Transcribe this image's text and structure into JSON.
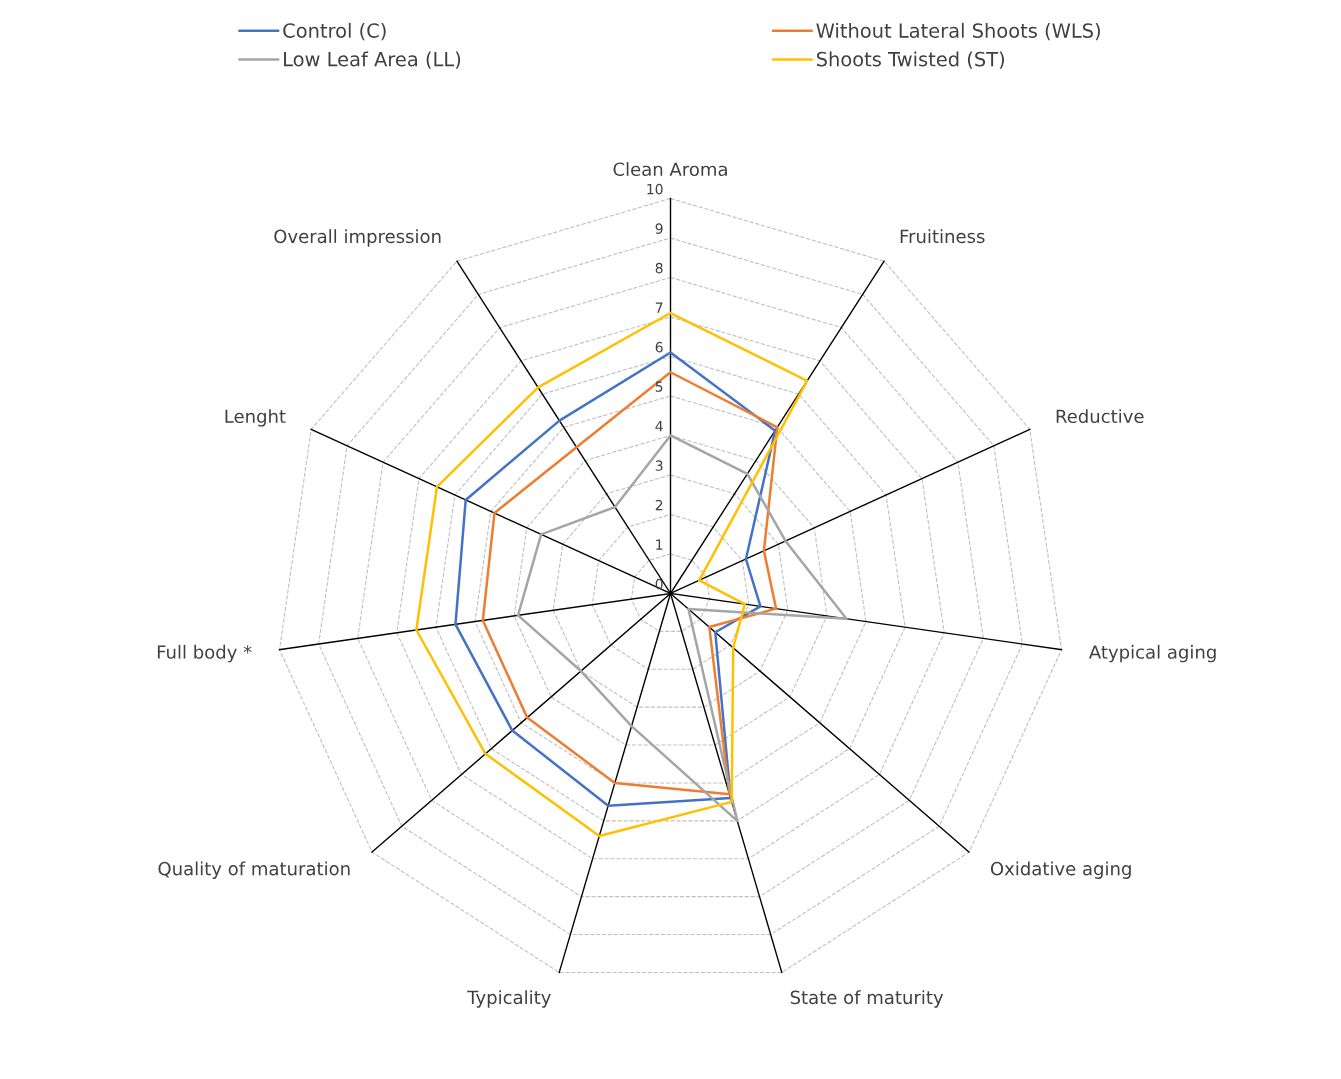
{
  "chart_data": {
    "type": "radar",
    "categories": [
      "Clean Aroma",
      "Fruitiness",
      "Reductive",
      "Atypical aging",
      "Oxidative aging",
      "State of maturity",
      "Typicality",
      "Quality of maturation",
      "Full body *",
      "Lenght",
      "Overall impression"
    ],
    "series": [
      {
        "name": "Control (C)",
        "color": "#4472c4",
        "values": [
          6.1,
          4.9,
          2.1,
          2.3,
          1.5,
          5.4,
          5.6,
          5.3,
          5.5,
          5.7,
          5.2
        ]
      },
      {
        "name": "Without Lateral Shoots (WLS)",
        "color": "#ed7d31",
        "values": [
          5.6,
          5.0,
          2.6,
          2.7,
          1.3,
          5.3,
          5.0,
          4.8,
          4.8,
          4.9,
          4.4
        ]
      },
      {
        "name": "Low Leaf Area (LL)",
        "color": "#a5a5a5",
        "values": [
          4.0,
          3.6,
          3.2,
          4.5,
          0.6,
          6.0,
          3.5,
          3.0,
          3.9,
          3.6,
          2.6
        ]
      },
      {
        "name": "Shoots Twisted (ST)",
        "color": "#ffc000",
        "values": [
          7.1,
          6.4,
          0.8,
          1.9,
          2.1,
          5.5,
          6.4,
          6.2,
          6.5,
          6.5,
          6.2
        ]
      }
    ],
    "ylim": [
      0,
      10
    ],
    "yticks": [
      0,
      1,
      2,
      3,
      4,
      5,
      6,
      7,
      8,
      9,
      10
    ],
    "grid": true,
    "legend": "top",
    "marker": "none",
    "line_style": "solid"
  }
}
